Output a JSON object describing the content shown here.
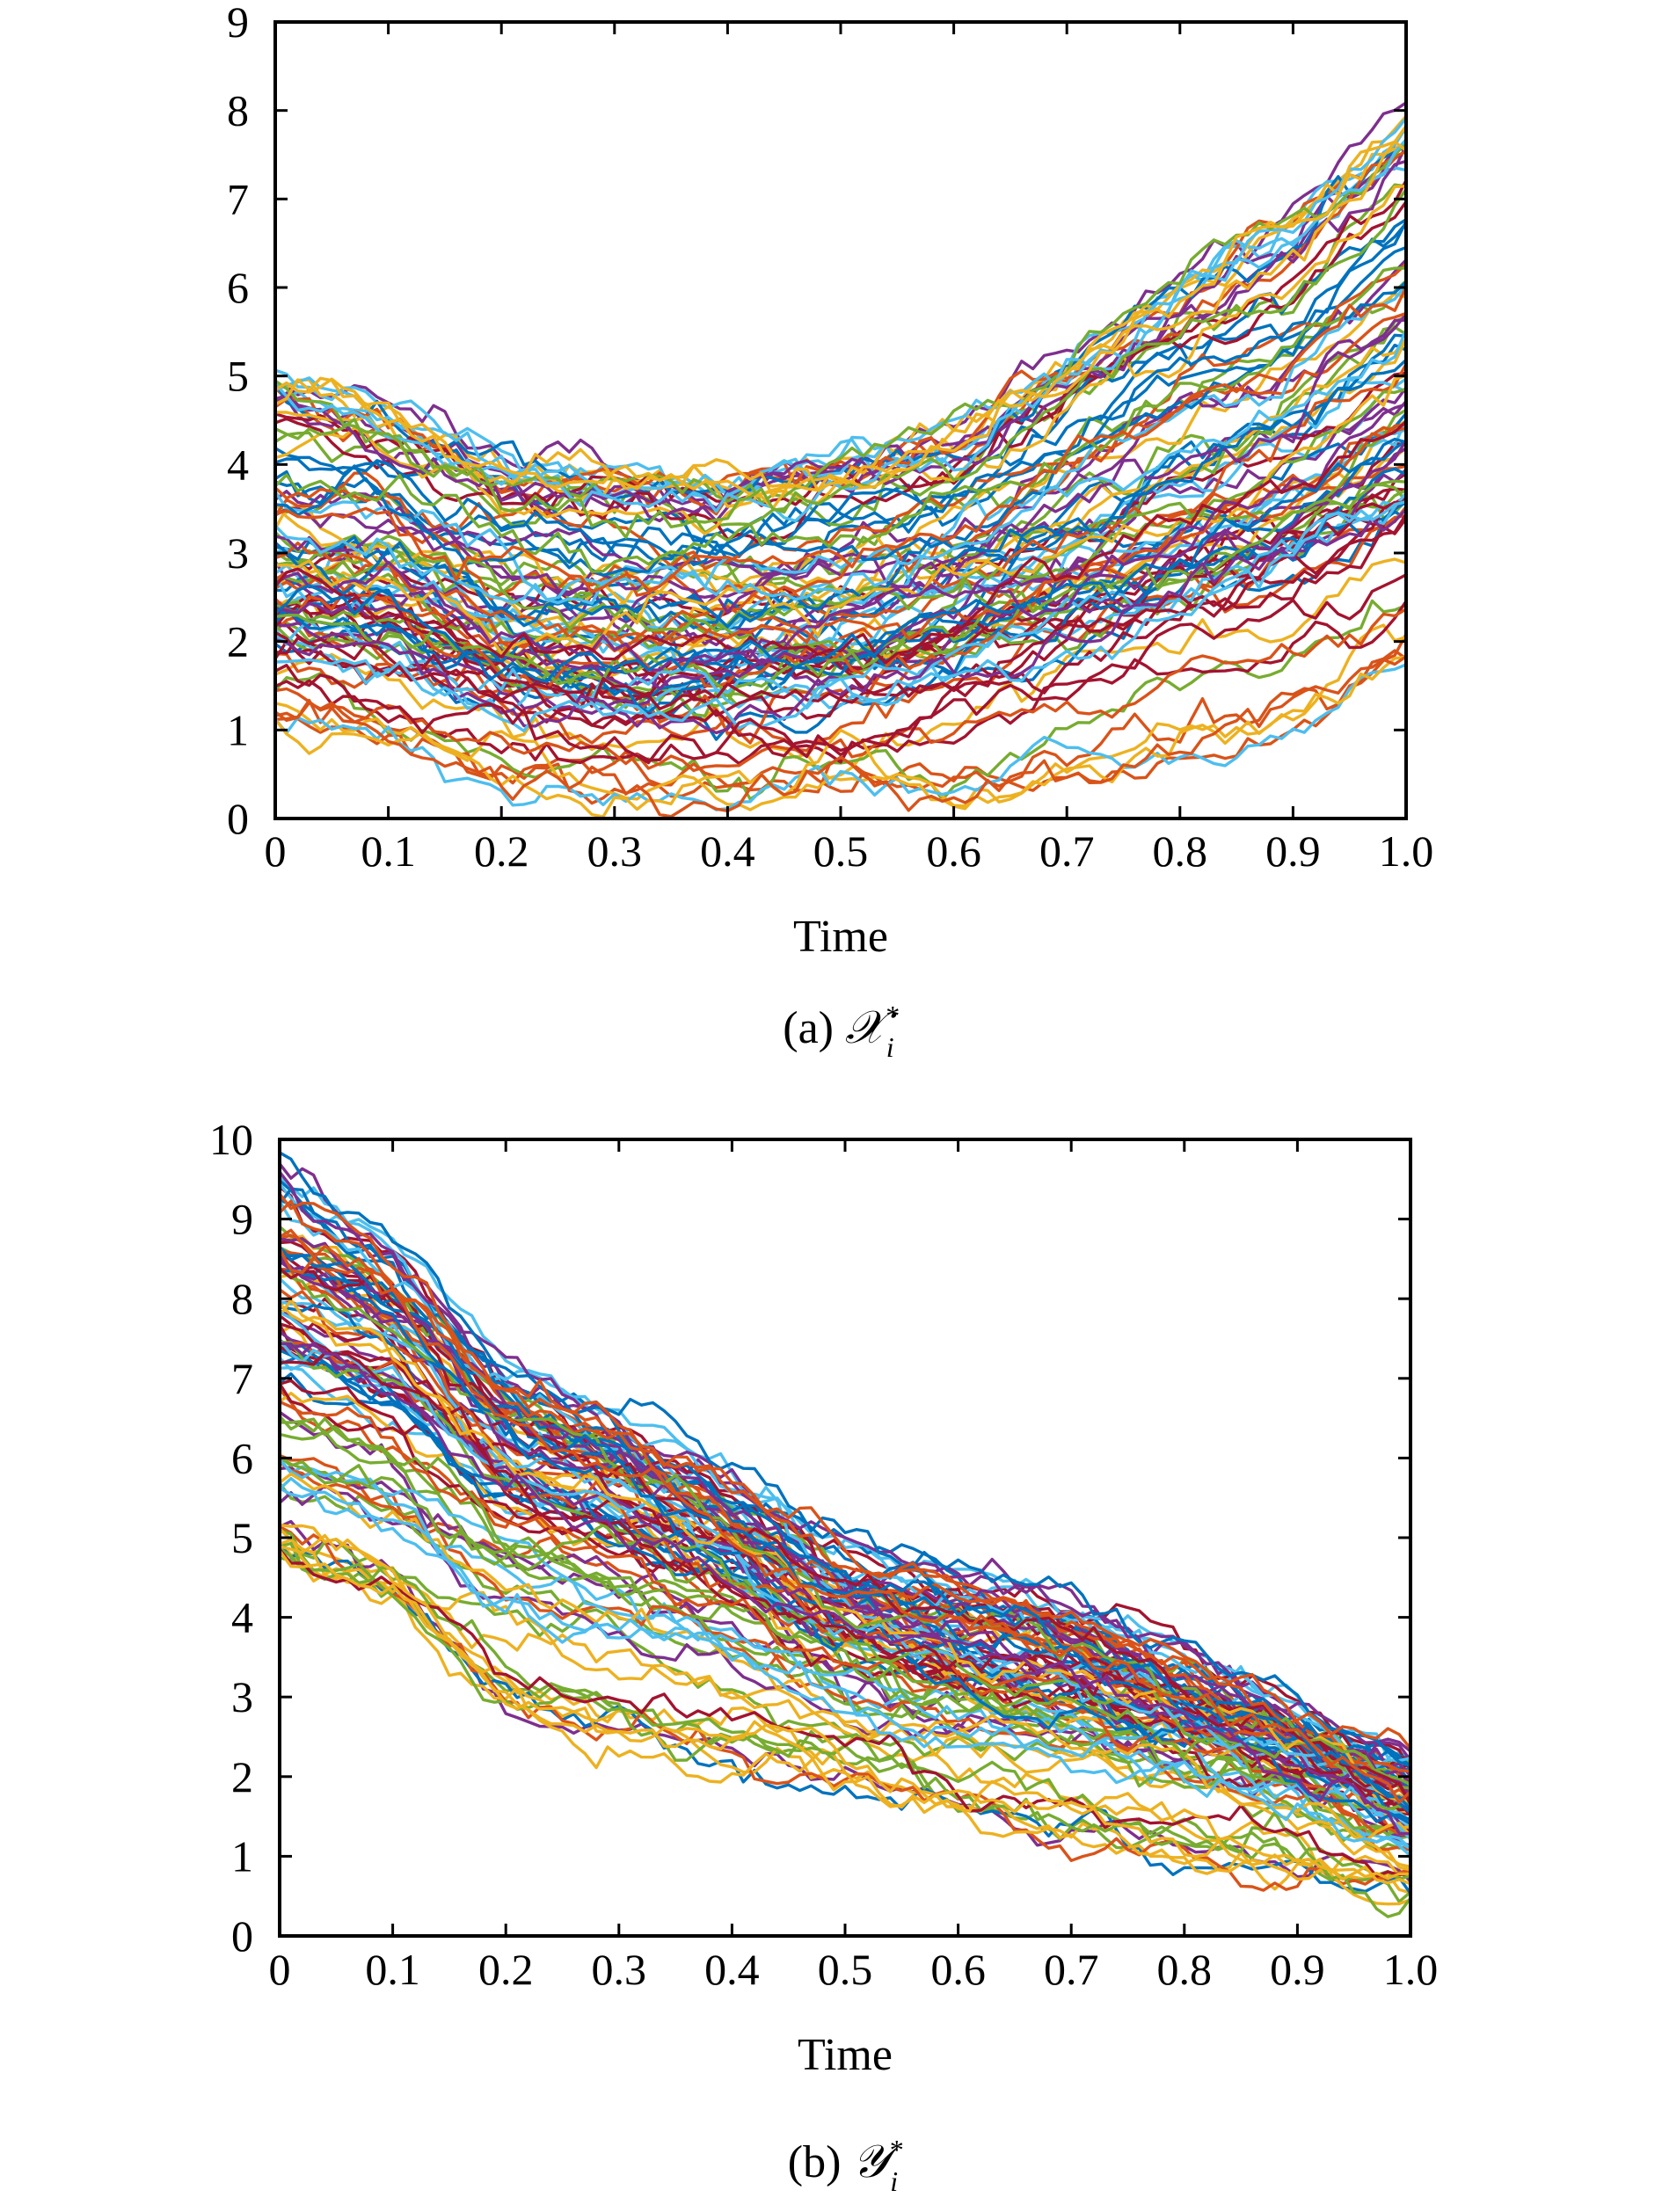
{
  "figure": {
    "palette": [
      "#0072BD",
      "#D95319",
      "#EDB120",
      "#7E2F8E",
      "#77AC30",
      "#4DBEEE",
      "#A2142F"
    ],
    "caption_a": {
      "prefix": "(a) ",
      "symbol": "𝒳",
      "sup": "*",
      "sub": "i"
    },
    "caption_b": {
      "prefix": "(b) ",
      "symbol": "𝒴",
      "sup": "*",
      "sub": "i"
    }
  },
  "chart_data": [
    {
      "type": "line",
      "id": "panel-a",
      "title": "",
      "xlabel": "Time",
      "ylabel": "",
      "xlim": [
        0,
        1
      ],
      "ylim": [
        0,
        9
      ],
      "xticks": [
        0,
        0.1,
        0.2,
        0.3,
        0.4,
        0.5,
        0.6,
        0.7,
        0.8,
        0.9,
        1.0
      ],
      "xtick_labels": [
        "0",
        "0.1",
        "0.2",
        "0.3",
        "0.4",
        "0.5",
        "0.6",
        "0.7",
        "0.8",
        "0.9",
        "1.0"
      ],
      "yticks": [
        0,
        1,
        2,
        3,
        4,
        5,
        6,
        7,
        8,
        9
      ],
      "ytick_labels": [
        "0",
        "1",
        "2",
        "3",
        "4",
        "5",
        "6",
        "7",
        "8",
        "9"
      ],
      "grid": false,
      "legend": "none",
      "num_paths": 100,
      "x": [
        0,
        0.1,
        0.2,
        0.3,
        0.4,
        0.5,
        0.6,
        0.7,
        0.8,
        0.9,
        1.0
      ],
      "series": [
        {
          "values": [
            5.0,
            4.6,
            4.0,
            3.9,
            3.8,
            4.0,
            4.3,
            5.2,
            6.2,
            6.9,
            8.0
          ]
        },
        {
          "values": [
            4.8,
            4.5,
            3.9,
            3.8,
            3.7,
            3.9,
            4.2,
            5.0,
            5.9,
            6.6,
            7.6
          ]
        },
        {
          "values": [
            4.5,
            4.3,
            3.7,
            3.6,
            3.6,
            3.8,
            4.0,
            4.8,
            5.6,
            6.2,
            7.3
          ]
        },
        {
          "values": [
            4.3,
            4.1,
            3.6,
            3.5,
            3.4,
            3.6,
            3.9,
            4.6,
            5.3,
            5.9,
            7.0
          ]
        },
        {
          "values": [
            4.0,
            3.9,
            3.4,
            3.3,
            3.2,
            3.4,
            3.7,
            4.4,
            5.1,
            5.7,
            6.7
          ]
        },
        {
          "values": [
            3.8,
            3.7,
            3.2,
            3.1,
            3.1,
            3.2,
            3.5,
            4.2,
            4.9,
            5.4,
            6.4
          ]
        },
        {
          "values": [
            3.6,
            3.5,
            3.0,
            2.9,
            2.9,
            3.0,
            3.3,
            4.0,
            4.6,
            5.2,
            6.1
          ]
        },
        {
          "values": [
            3.4,
            3.3,
            2.8,
            2.7,
            2.7,
            2.8,
            3.1,
            3.7,
            4.4,
            4.9,
            5.8
          ]
        },
        {
          "values": [
            3.2,
            3.1,
            2.6,
            2.5,
            2.5,
            2.6,
            2.9,
            3.5,
            4.1,
            4.6,
            5.5
          ]
        },
        {
          "values": [
            3.0,
            2.9,
            2.4,
            2.3,
            2.3,
            2.4,
            2.7,
            3.2,
            3.8,
            4.3,
            5.1
          ]
        },
        {
          "values": [
            2.8,
            2.7,
            2.2,
            2.1,
            2.1,
            2.2,
            2.5,
            3.0,
            3.5,
            4.0,
            4.8
          ]
        },
        {
          "values": [
            2.6,
            2.5,
            2.0,
            1.9,
            1.9,
            2.0,
            2.3,
            2.7,
            3.2,
            3.7,
            4.4
          ]
        },
        {
          "values": [
            2.4,
            2.3,
            1.8,
            1.7,
            1.7,
            1.8,
            2.1,
            2.5,
            3.0,
            3.4,
            4.1
          ]
        },
        {
          "values": [
            2.2,
            2.1,
            1.6,
            1.5,
            1.5,
            1.6,
            1.9,
            2.3,
            2.7,
            3.1,
            3.8
          ]
        },
        {
          "values": [
            2.0,
            1.9,
            1.4,
            1.3,
            1.3,
            1.4,
            1.7,
            2.1,
            2.5,
            2.9,
            3.5
          ]
        },
        {
          "values": [
            1.8,
            1.7,
            1.2,
            1.1,
            1.1,
            1.2,
            1.5,
            1.9,
            2.3,
            2.6,
            3.2
          ]
        },
        {
          "values": [
            1.6,
            1.5,
            1.0,
            0.9,
            0.9,
            1.0,
            1.3,
            1.7,
            2.1,
            2.4,
            2.9
          ]
        },
        {
          "values": [
            1.3,
            1.0,
            0.5,
            0.4,
            0.2,
            0.5,
            0.3,
            0.6,
            1.0,
            1.4,
            2.0
          ]
        },
        {
          "values": [
            1.1,
            0.9,
            0.3,
            0.3,
            0.3,
            0.6,
            0.4,
            0.5,
            0.7,
            1.1,
            1.6
          ]
        }
      ]
    },
    {
      "type": "line",
      "id": "panel-b",
      "title": "",
      "xlabel": "Time",
      "ylabel": "",
      "xlim": [
        0,
        1
      ],
      "ylim": [
        0,
        10
      ],
      "xticks": [
        0,
        0.1,
        0.2,
        0.3,
        0.4,
        0.5,
        0.6,
        0.7,
        0.8,
        0.9,
        1.0
      ],
      "xtick_labels": [
        "0",
        "0.1",
        "0.2",
        "0.3",
        "0.4",
        "0.5",
        "0.6",
        "0.7",
        "0.8",
        "0.9",
        "1.0"
      ],
      "yticks": [
        0,
        1,
        2,
        3,
        4,
        5,
        6,
        7,
        8,
        9,
        10
      ],
      "ytick_labels": [
        "0",
        "1",
        "2",
        "3",
        "4",
        "5",
        "6",
        "7",
        "8",
        "9",
        "10"
      ],
      "grid": false,
      "legend": "none",
      "num_paths": 100,
      "x": [
        0,
        0.1,
        0.2,
        0.3,
        0.4,
        0.5,
        0.6,
        0.7,
        0.8,
        0.9,
        1.0
      ],
      "series": [
        {
          "values": [
            9.8,
            8.8,
            7.2,
            6.6,
            5.8,
            4.9,
            4.6,
            4.3,
            3.7,
            3.0,
            2.3
          ]
        },
        {
          "values": [
            9.4,
            8.5,
            7.0,
            6.4,
            5.6,
            4.8,
            4.4,
            4.1,
            3.5,
            2.8,
            2.2
          ]
        },
        {
          "values": [
            9.0,
            8.2,
            6.8,
            6.2,
            5.4,
            4.6,
            4.2,
            3.9,
            3.3,
            2.6,
            2.0
          ]
        },
        {
          "values": [
            8.6,
            7.9,
            6.6,
            6.0,
            5.2,
            4.4,
            4.0,
            3.7,
            3.1,
            2.5,
            1.9
          ]
        },
        {
          "values": [
            8.2,
            7.6,
            6.3,
            5.8,
            5.0,
            4.2,
            3.8,
            3.5,
            3.0,
            2.4,
            1.8
          ]
        },
        {
          "values": [
            7.8,
            7.2,
            6.0,
            5.5,
            4.8,
            4.0,
            3.6,
            3.3,
            2.8,
            2.3,
            1.7
          ]
        },
        {
          "values": [
            7.4,
            6.9,
            5.7,
            5.2,
            4.6,
            3.8,
            3.4,
            3.1,
            2.7,
            2.2,
            1.6
          ]
        },
        {
          "values": [
            7.0,
            6.5,
            5.4,
            5.0,
            4.4,
            3.6,
            3.2,
            3.0,
            2.6,
            2.1,
            1.5
          ]
        },
        {
          "values": [
            6.6,
            6.1,
            5.1,
            4.7,
            4.2,
            3.4,
            3.1,
            2.9,
            2.4,
            2.0,
            1.4
          ]
        },
        {
          "values": [
            6.2,
            5.8,
            4.8,
            4.4,
            4.0,
            3.3,
            3.0,
            2.7,
            2.3,
            1.9,
            1.3
          ]
        },
        {
          "values": [
            5.8,
            5.4,
            4.5,
            4.1,
            3.8,
            3.1,
            2.8,
            2.6,
            2.2,
            1.8,
            1.2
          ]
        },
        {
          "values": [
            5.4,
            5.0,
            4.2,
            3.8,
            3.5,
            2.9,
            2.6,
            2.4,
            2.1,
            1.7,
            1.1
          ]
        },
        {
          "values": [
            5.0,
            4.6,
            3.8,
            3.5,
            3.2,
            2.7,
            2.4,
            2.2,
            2.0,
            1.6,
            1.0
          ]
        },
        {
          "values": [
            4.8,
            4.3,
            2.9,
            2.5,
            2.2,
            2.2,
            1.6,
            1.4,
            1.1,
            0.8,
            0.5
          ]
        },
        {
          "values": [
            5.2,
            4.5,
            3.0,
            2.6,
            2.2,
            2.1,
            1.5,
            1.3,
            1.1,
            0.8,
            0.6
          ]
        }
      ]
    }
  ]
}
